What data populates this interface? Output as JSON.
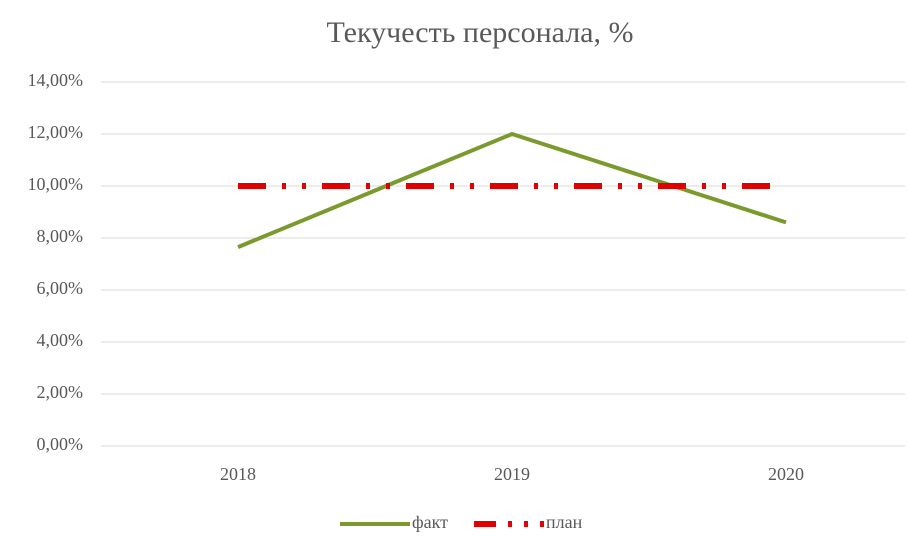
{
  "chart_data": {
    "type": "line",
    "title": "Текучесть персонала, %",
    "categories": [
      "2018",
      "2019",
      "2020"
    ],
    "series": [
      {
        "name": "факт",
        "color": "#7a9a2e",
        "values": [
          7.65,
          12.0,
          8.6
        ]
      },
      {
        "name": "план",
        "color": "#e00000",
        "values": [
          10,
          10,
          10
        ]
      }
    ],
    "ylim": [
      0,
      14
    ],
    "yticks": [
      {
        "value": 0,
        "label": "0,00%"
      },
      {
        "value": 2,
        "label": "2,00%"
      },
      {
        "value": 4,
        "label": "4,00%"
      },
      {
        "value": 6,
        "label": "6,00%"
      },
      {
        "value": 8,
        "label": "8,00%"
      },
      {
        "value": 10,
        "label": "10,00%"
      },
      {
        "value": 12,
        "label": "12,00%"
      },
      {
        "value": 14,
        "label": "14,00%"
      }
    ],
    "grid": true,
    "legend": "bottom"
  }
}
